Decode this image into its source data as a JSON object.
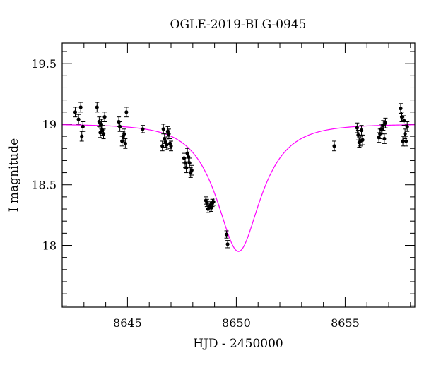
{
  "chart_data": {
    "type": "scatter",
    "title": "OGLE-2019-BLG-0945",
    "xlabel": "HJD - 2450000",
    "ylabel": "I magnitude",
    "xlim": [
      8642.0,
      8658.2
    ],
    "ylim": [
      19.67,
      17.49
    ],
    "y_inverted": true,
    "x_ticks": [
      8645,
      8650,
      8655
    ],
    "x_tick_labels": [
      "8645",
      "8650",
      "8655"
    ],
    "y_ticks": [
      18.0,
      18.5,
      19.0,
      19.5
    ],
    "y_tick_labels": [
      "18",
      "18.5",
      "19",
      "19.5"
    ],
    "x_minor_step": 1,
    "y_minor_step": 0.1,
    "grid": false,
    "legend": "none",
    "colors": {
      "model": "#ff00ff",
      "points": "#000000",
      "frame": "#000000"
    },
    "model": {
      "name": "",
      "t0": 8650.1,
      "u0": 0.5,
      "tE": 1.75,
      "baseline_mag": 19.0,
      "blend_fraction": 1.0,
      "ref_u": 0.5,
      "ref_mag": 17.95
    },
    "series": [
      {
        "name": "",
        "x": [
          8642.6,
          8642.75,
          8642.85,
          8642.9,
          8642.95,
          8643.6,
          8643.7,
          8643.75,
          8643.8,
          8643.85,
          8643.9,
          8643.95,
          8644.6,
          8644.65,
          8644.75,
          8644.8,
          8644.85,
          8644.9,
          8644.95,
          8645.7,
          8646.6,
          8646.65,
          8646.7,
          8646.75,
          8646.8,
          8646.85,
          8646.9,
          8646.95,
          8647.0,
          8647.6,
          8647.65,
          8647.7,
          8647.75,
          8647.8,
          8647.85,
          8647.9,
          8647.95,
          8648.6,
          8648.65,
          8648.7,
          8648.75,
          8648.8,
          8648.85,
          8648.9,
          8648.95,
          8649.55,
          8649.6,
          8654.5,
          8655.55,
          8655.6,
          8655.65,
          8655.7,
          8655.75,
          8655.8,
          8656.55,
          8656.6,
          8656.65,
          8656.7,
          8656.75,
          8656.8,
          8656.85,
          8657.55,
          8657.6,
          8657.65,
          8657.7,
          8657.75,
          8657.8,
          8657.85
        ],
        "y": [
          19.1,
          19.04,
          19.14,
          18.9,
          18.98,
          19.14,
          19.02,
          18.93,
          19.0,
          18.95,
          18.92,
          19.06,
          19.02,
          18.98,
          18.86,
          18.9,
          18.92,
          18.84,
          19.1,
          18.96,
          18.82,
          18.96,
          18.88,
          18.85,
          18.83,
          18.94,
          18.92,
          18.84,
          18.82,
          18.72,
          18.68,
          18.64,
          18.76,
          18.73,
          18.68,
          18.6,
          18.62,
          18.37,
          18.35,
          18.3,
          18.32,
          18.33,
          18.31,
          18.35,
          18.36,
          18.09,
          18.01,
          18.82,
          18.97,
          18.91,
          18.85,
          18.86,
          18.95,
          18.87,
          18.89,
          18.92,
          18.96,
          18.96,
          18.99,
          18.88,
          19.01,
          19.13,
          19.06,
          18.86,
          19.03,
          18.92,
          18.86,
          18.98
        ],
        "yerr": [
          0.04,
          0.04,
          0.04,
          0.04,
          0.04,
          0.04,
          0.04,
          0.04,
          0.04,
          0.04,
          0.04,
          0.04,
          0.04,
          0.04,
          0.04,
          0.04,
          0.04,
          0.04,
          0.04,
          0.03,
          0.04,
          0.04,
          0.04,
          0.04,
          0.04,
          0.04,
          0.04,
          0.04,
          0.04,
          0.04,
          0.04,
          0.04,
          0.04,
          0.04,
          0.04,
          0.04,
          0.04,
          0.03,
          0.03,
          0.03,
          0.03,
          0.03,
          0.03,
          0.03,
          0.03,
          0.03,
          0.03,
          0.04,
          0.04,
          0.04,
          0.04,
          0.04,
          0.04,
          0.04,
          0.04,
          0.04,
          0.04,
          0.04,
          0.04,
          0.04,
          0.04,
          0.04,
          0.04,
          0.04,
          0.04,
          0.04,
          0.04,
          0.04
        ]
      }
    ]
  }
}
